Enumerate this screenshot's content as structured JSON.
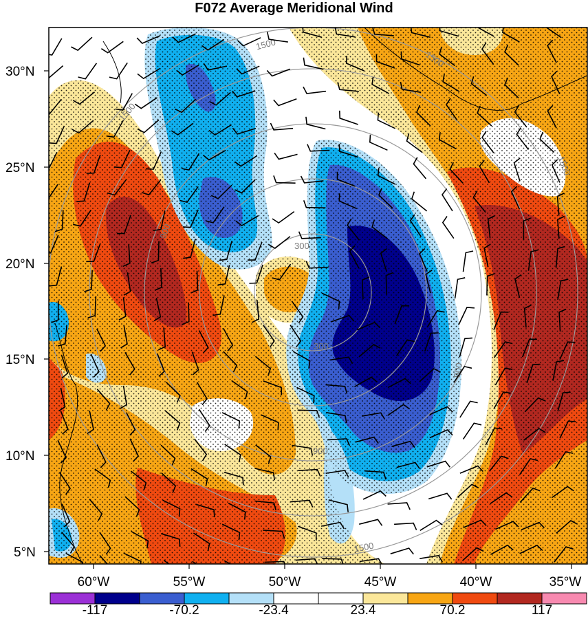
{
  "title": "F072 Average Meridional Wind",
  "map": {
    "lat_labels": [
      "30°N",
      "25°N",
      "20°N",
      "15°N",
      "10°N",
      "5°N"
    ],
    "lon_labels": [
      "60°W",
      "55°W",
      "50°W",
      "45°W",
      "40°W",
      "35°W"
    ],
    "range_rings": {
      "labels": [
        "300",
        "300",
        "900",
        "900",
        "900",
        "1500",
        "1500",
        "1500",
        "1500",
        "1500"
      ],
      "color": "#9a9a9a"
    },
    "stipple": "dots",
    "wind_barbs": "black"
  },
  "colorbar": {
    "labels": [
      "-117",
      "-70.2",
      "-23.4",
      "23.4",
      "70.2",
      "117"
    ],
    "colors": [
      "#9b30d6",
      "#00008c",
      "#3a5ed0",
      "#10b0f0",
      "#b4e0f8",
      "#ffffff",
      "#ffffff",
      "#fbe79a",
      "#f8a614",
      "#f04a10",
      "#b22820",
      "#f88ab0"
    ]
  }
}
